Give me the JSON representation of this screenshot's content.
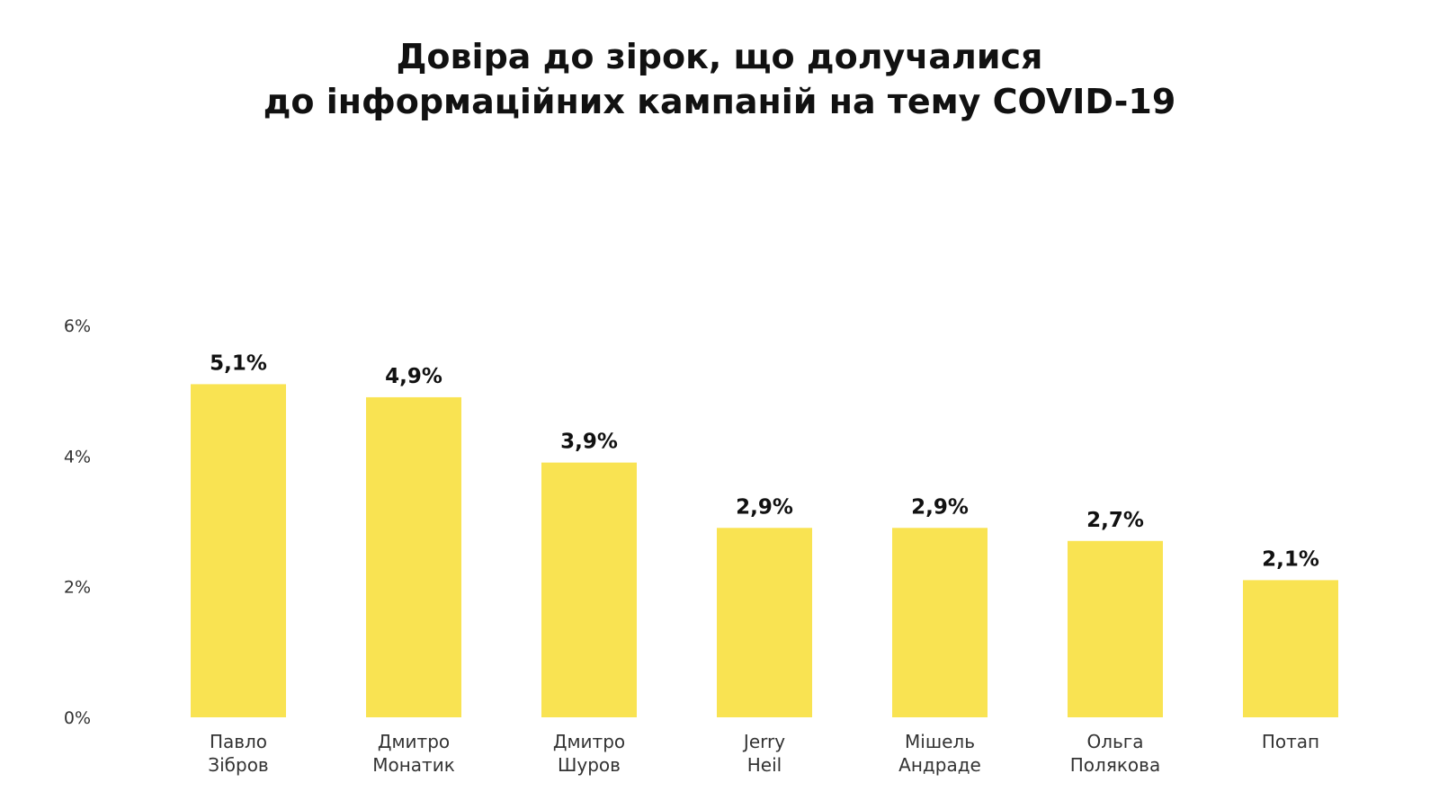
{
  "chart_data": {
    "type": "bar",
    "title_lines": [
      "Довіра до зірок, що долучалися",
      "до інформаційних кампаній на тему COVID-19"
    ],
    "categories": [
      [
        "Павло",
        "Зібров"
      ],
      [
        "Дмитро",
        "Монатик"
      ],
      [
        "Дмитро",
        "Шуров"
      ],
      [
        "Jerry",
        "Heil"
      ],
      [
        "Мішель",
        "Андраде"
      ],
      [
        "Ольга",
        "Полякова"
      ],
      [
        "Потап"
      ]
    ],
    "values": [
      5.1,
      4.9,
      3.9,
      2.9,
      2.9,
      2.7,
      2.1
    ],
    "value_labels": [
      "5,1%",
      "4,9%",
      "3,9%",
      "2,9%",
      "2,9%",
      "2,7%",
      "2,1%"
    ],
    "yticks": [
      0,
      2,
      4,
      6
    ],
    "ytick_labels": [
      "0%",
      "2%",
      "4%",
      "6%"
    ],
    "ylim": [
      0,
      6
    ],
    "grid": false,
    "legend": "none",
    "colors": {
      "bar": "#F9E352",
      "text": "#111111",
      "axis_text": "#333333"
    }
  }
}
